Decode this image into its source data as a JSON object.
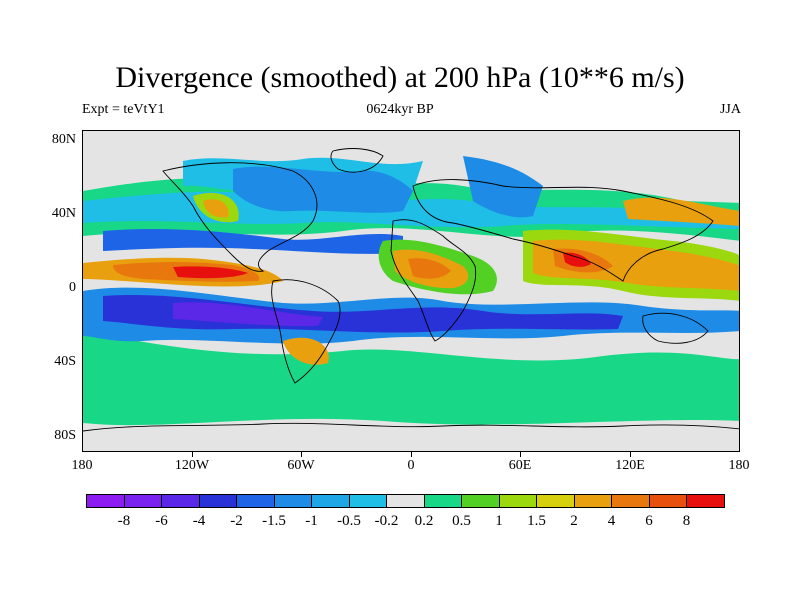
{
  "title": "Divergence (smoothed) at 200 hPa (10**6 m/s)",
  "subtitle_left": "Expt = teVtY1",
  "subtitle_center": "0624kyr BP",
  "subtitle_right": "JJA",
  "lat_labels": [
    "80N",
    "40N",
    "0",
    "40S",
    "80S"
  ],
  "lon_labels": [
    "180",
    "120W",
    "60W",
    "0",
    "60E",
    "120E",
    "180"
  ],
  "colorbar": {
    "colors": [
      "#8c1cf0",
      "#7a22f0",
      "#5a28e6",
      "#2832d6",
      "#1e64e6",
      "#1e8ce6",
      "#1ea6e6",
      "#1ebee6",
      "#e4e4e4",
      "#18d888",
      "#52d024",
      "#9cd80e",
      "#d6d00e",
      "#e8a00e",
      "#e8780e",
      "#e8500e",
      "#e8100e"
    ],
    "labels": [
      "-8",
      "-6",
      "-4",
      "-2",
      "-1.5",
      "-1",
      "-0.5",
      "-0.2",
      "0.2",
      "0.5",
      "1",
      "1.5",
      "2",
      "4",
      "6",
      "8"
    ]
  }
}
